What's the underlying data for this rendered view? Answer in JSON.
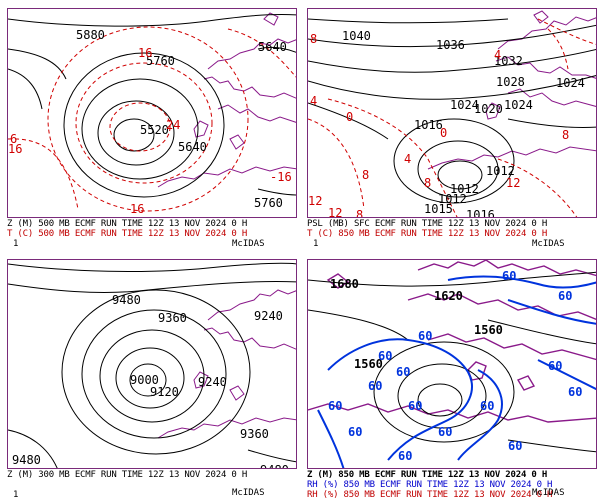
{
  "panels": [
    {
      "line1": "Z (M) 500 MB ECMF RUN TIME 12Z 13 NOV 2024   0  H",
      "line2": "T (C) 500 MB ECMF RUN TIME 12Z 13 NOV 2024   0  H",
      "frame": "1",
      "brand": "McIDAS",
      "height_labels": [
        "5880",
        "5760",
        "5520",
        "5640",
        "5640",
        "5760"
      ],
      "temp_labels": [
        "16",
        "24",
        "6",
        "16",
        "-16",
        "16"
      ]
    },
    {
      "line1": "PSL (MB) SFC ECMF RUN TIME 12Z 13 NOV 2024   0  H",
      "line2": "T (C) 850 MB ECMF RUN TIME 12Z 13 NOV 2024   0  H",
      "frame": "1",
      "brand": "McIDAS",
      "pressure_labels": [
        "1040",
        "1036",
        "1032",
        "1028",
        "1024",
        "1020",
        "1024",
        "1024",
        "1016",
        "1012",
        "1012",
        "1012",
        "1015",
        "1016"
      ],
      "temp_labels": [
        "8",
        "4",
        "0",
        "0",
        "8",
        "4",
        "8",
        "12",
        "12",
        "8",
        "12",
        "4",
        "8"
      ]
    },
    {
      "line1": "Z (M) 300 MB ECMF RUN TIME 12Z 13 NOV 2024   0  H",
      "frame": "1",
      "brand": "McIDAS",
      "height_labels": [
        "9480",
        "9360",
        "9240",
        "9000",
        "9120",
        "9240",
        "9360",
        "9480",
        "9480"
      ]
    },
    {
      "line1": "Z (M) 850 MB ECMF RUN TIME 12Z 13 NOV 2024   0  H",
      "line2": "RH (%) 850 MB ECMF RUN TIME 12Z 13 NOV 2024   0  H",
      "line3": "RH (%) 850 MB ECMF RUN TIME 12Z 13 NOV 2024   0  H",
      "brand": "McIDAS",
      "height_labels": [
        "1680",
        "1620",
        "1560",
        "1560"
      ],
      "rh_label": "60"
    }
  ]
}
